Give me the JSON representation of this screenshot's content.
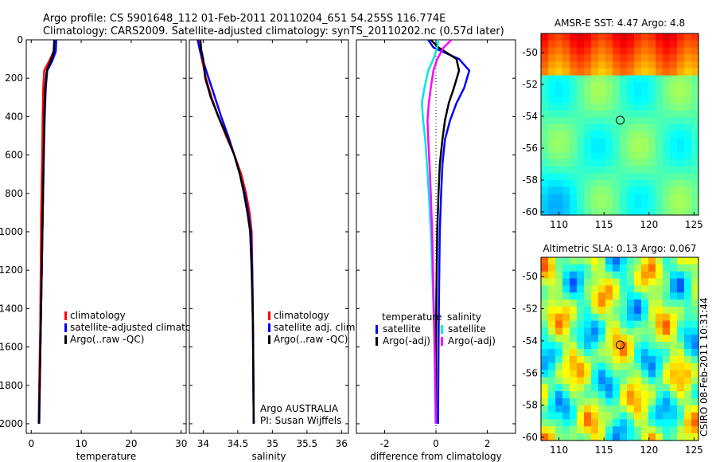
{
  "header": {
    "line1": "Argo profile: CS 5901648_112 01-Feb-2011 20110204_651 54.255S 116.774E",
    "line2": "Climatology: CARS2009. Satellite-adjusted climatology: synTS_20110202.nc (0.57d later)"
  },
  "credit": "CSIRO 08-Feb-2011 10:31:44",
  "colors": {
    "climatology": "#ff0000",
    "satellite": "#0000ff",
    "argo": "#000000",
    "sal_satellite": "#00e5e5",
    "sal_argo": "#ff00ff"
  },
  "chart_data": [
    {
      "type": "line",
      "id": "temperature",
      "xlabel": "temperature",
      "ylabel": "",
      "xlim": [
        -1,
        31
      ],
      "ylim": [
        2050,
        0
      ],
      "y_inverted": true,
      "xticks": [
        0,
        10,
        20,
        30
      ],
      "xtick_labels": [
        "0",
        "10",
        "20",
        "30"
      ],
      "yticks": [
        0,
        200,
        400,
        600,
        800,
        1000,
        1200,
        1400,
        1600,
        1800,
        2000
      ],
      "ytick_labels": [
        "0",
        "200",
        "400",
        "600",
        "800",
        "1000",
        "1200",
        "1400",
        "1600",
        "1800",
        "2000"
      ],
      "legend": [
        "climatology",
        "satellite-adjusted climatolog",
        "Argo(..raw -QC)"
      ],
      "series": [
        {
          "name": "climatology",
          "color": "#ff0000",
          "x": [
            4.7,
            4.5,
            3.6,
            2.6,
            2.4,
            2.3,
            2.2,
            2.0,
            1.9,
            1.8,
            1.6,
            1.5
          ],
          "y": [
            0,
            60,
            110,
            160,
            250,
            400,
            600,
            900,
            1200,
            1500,
            1800,
            2000
          ]
        },
        {
          "name": "satellite-adjusted climatolog",
          "color": "#0000ff",
          "x": [
            5.0,
            4.9,
            4.2,
            3.2,
            2.9,
            2.7,
            2.5,
            2.3,
            2.1,
            1.9,
            1.7,
            1.5
          ],
          "y": [
            0,
            60,
            110,
            160,
            250,
            400,
            600,
            900,
            1200,
            1500,
            1800,
            2000
          ]
        },
        {
          "name": "Argo(..raw -QC)",
          "color": "#000000",
          "x": [
            4.6,
            4.5,
            3.9,
            3.1,
            2.8,
            2.6,
            2.5,
            2.3,
            2.1,
            1.9,
            1.7,
            1.6
          ],
          "y": [
            0,
            60,
            110,
            160,
            250,
            400,
            600,
            900,
            1200,
            1500,
            1800,
            2000
          ]
        }
      ]
    },
    {
      "type": "line",
      "id": "salinity",
      "xlabel": "salinity",
      "xlim": [
        33.8,
        36.1
      ],
      "ylim": [
        2050,
        0
      ],
      "y_inverted": true,
      "xticks": [
        34,
        34.5,
        35,
        35.5,
        36
      ],
      "xtick_labels": [
        "34",
        "34.5",
        "35",
        "35.5",
        "36"
      ],
      "legend": [
        "climatology",
        "satellite adj. clim.",
        "Argo(..raw -QC)"
      ],
      "annotation": [
        "Argo AUSTRALIA",
        "PI: Susan Wijffels"
      ],
      "series": [
        {
          "name": "climatology",
          "color": "#ff0000",
          "x": [
            33.94,
            33.95,
            33.98,
            34.04,
            34.12,
            34.22,
            34.33,
            34.45,
            34.55,
            34.62,
            34.67,
            34.7,
            34.71,
            34.72,
            34.73
          ],
          "y": [
            0,
            50,
            100,
            200,
            300,
            400,
            500,
            600,
            700,
            800,
            900,
            1000,
            1200,
            1500,
            2000
          ]
        },
        {
          "name": "satellite adj. clim.",
          "color": "#0000ff",
          "x": [
            33.92,
            33.95,
            33.99,
            34.08,
            34.17,
            34.26,
            34.36,
            34.45,
            34.53,
            34.6,
            34.65,
            34.69,
            34.71,
            34.72,
            34.73
          ],
          "y": [
            0,
            50,
            100,
            200,
            300,
            400,
            500,
            600,
            700,
            800,
            900,
            1000,
            1200,
            1500,
            2000
          ]
        },
        {
          "name": "Argo(..raw -QC)",
          "color": "#000000",
          "x": [
            33.96,
            33.97,
            34.0,
            34.03,
            34.11,
            34.22,
            34.34,
            34.45,
            34.53,
            34.59,
            34.64,
            34.68,
            34.7,
            34.72,
            34.73
          ],
          "y": [
            0,
            50,
            100,
            200,
            300,
            400,
            500,
            600,
            700,
            800,
            900,
            1000,
            1200,
            1500,
            2000
          ]
        }
      ]
    },
    {
      "type": "line",
      "id": "difference",
      "xlabel": "difference from climatology",
      "xlim": [
        -3.1,
        3.1
      ],
      "ylim": [
        2050,
        0
      ],
      "y_inverted": true,
      "xticks": [
        -2,
        0,
        2
      ],
      "xtick_labels": [
        "-2",
        "0",
        "2"
      ],
      "legend_groups": [
        {
          "title": "temperature",
          "items": [
            "satellite",
            "Argo(-adj)"
          ]
        },
        {
          "title": "salinity",
          "items": [
            "satellite",
            "Argo(-adj)"
          ]
        }
      ],
      "series": [
        {
          "name": "temperature satellite",
          "color": "#0000ff",
          "x": [
            -0.3,
            -0.1,
            0.9,
            1.3,
            1.1,
            0.8,
            0.55,
            0.35,
            0.25,
            0.2,
            0.15,
            0.12,
            0.1,
            0.08
          ],
          "y": [
            0,
            40,
            100,
            160,
            250,
            330,
            420,
            520,
            650,
            800,
            1000,
            1300,
            1600,
            2000
          ]
        },
        {
          "name": "temperature Argo(-adj)",
          "color": "#000000",
          "x": [
            -0.2,
            0.1,
            0.8,
            0.9,
            0.7,
            0.5,
            0.35,
            0.25,
            0.15,
            0.1,
            0.05,
            0.02,
            0.0,
            0.0
          ],
          "y": [
            0,
            40,
            100,
            160,
            250,
            330,
            420,
            520,
            650,
            800,
            1000,
            1300,
            1600,
            2000
          ]
        },
        {
          "name": "salinity satellite",
          "color": "#00e5e5",
          "x": [
            0.1,
            0.05,
            -0.1,
            -0.3,
            -0.45,
            -0.55,
            -0.5,
            -0.42,
            -0.35,
            -0.28,
            -0.2,
            -0.12,
            -0.06,
            -0.02
          ],
          "y": [
            0,
            40,
            100,
            160,
            250,
            330,
            420,
            520,
            650,
            800,
            1000,
            1300,
            1600,
            2000
          ]
        },
        {
          "name": "salinity Argo(-adj)",
          "color": "#ff00ff",
          "x": [
            0.6,
            0.3,
            0.05,
            -0.1,
            -0.2,
            -0.28,
            -0.33,
            -0.3,
            -0.25,
            -0.2,
            -0.15,
            -0.1,
            -0.05,
            0.0
          ],
          "y": [
            0,
            40,
            100,
            160,
            250,
            330,
            420,
            520,
            650,
            800,
            1000,
            1300,
            1600,
            2000
          ]
        }
      ]
    },
    {
      "type": "heatmap",
      "id": "sst-map",
      "title": "AMSR-E SST: 4.47 Argo: 4.8",
      "xlim": [
        108,
        125.5
      ],
      "ylim": [
        -60.2,
        -48.8
      ],
      "xticks": [
        110,
        115,
        120,
        125
      ],
      "xtick_labels": [
        "110",
        "115",
        "120",
        "125"
      ],
      "yticks": [
        -50,
        -52,
        -54,
        -56,
        -58,
        -60
      ],
      "ytick_labels": [
        "-50",
        "-52",
        "-54",
        "-56",
        "-58",
        "-60"
      ],
      "marker": {
        "lon": 116.8,
        "lat": -54.25
      }
    },
    {
      "type": "heatmap",
      "id": "sla-map",
      "title": "Altimetric SLA: 0.13 Argo: 0.067",
      "xlim": [
        108,
        125.5
      ],
      "ylim": [
        -60.2,
        -48.8
      ],
      "xticks": [
        110,
        115,
        120,
        125
      ],
      "xtick_labels": [
        "110",
        "115",
        "120",
        "125"
      ],
      "yticks": [
        -50,
        -52,
        -54,
        -56,
        -58,
        -60
      ],
      "ytick_labels": [
        "-50",
        "-52",
        "-54",
        "-56",
        "-58",
        "-60"
      ],
      "marker": {
        "lon": 116.8,
        "lat": -54.25
      }
    }
  ]
}
